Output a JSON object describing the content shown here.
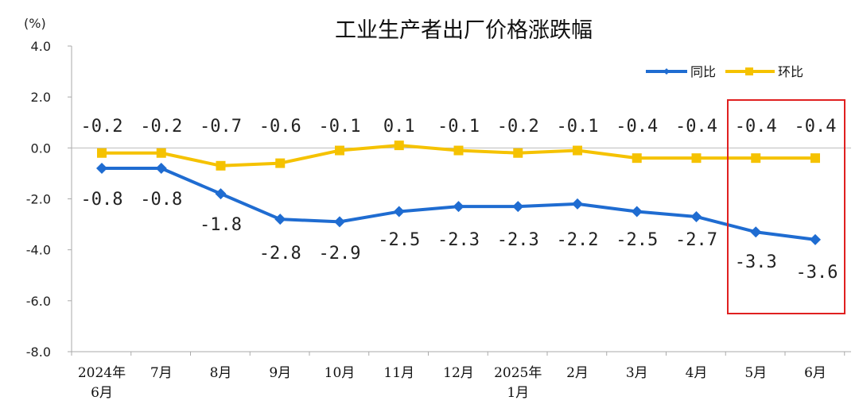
{
  "chart_data": {
    "type": "line",
    "title": "工业生产者出厂价格涨跌幅",
    "unit_label": "(%)",
    "ylim": [
      -8,
      4
    ],
    "yticks": [
      "4.0",
      "2.0",
      "0.0",
      "-2.0",
      "-4.0",
      "-6.0",
      "-8.0"
    ],
    "ytick_values": [
      4,
      2,
      0,
      -2,
      -4,
      -6,
      -8
    ],
    "grid": false,
    "legend_position": "top-right",
    "categories": [
      [
        "2024年",
        "6月"
      ],
      [
        "7月"
      ],
      [
        "8月"
      ],
      [
        "9月"
      ],
      [
        "10月"
      ],
      [
        "11月"
      ],
      [
        "12月"
      ],
      [
        "2025年",
        "1月"
      ],
      [
        "2月"
      ],
      [
        "3月"
      ],
      [
        "4月"
      ],
      [
        "5月"
      ],
      [
        "6月"
      ]
    ],
    "series": [
      {
        "name": "同比",
        "color": "#1F6CD1",
        "marker": "diamond",
        "values": [
          -0.8,
          -0.8,
          -1.8,
          -2.8,
          -2.9,
          -2.5,
          -2.3,
          -2.3,
          -2.2,
          -2.5,
          -2.7,
          -3.3,
          -3.6
        ],
        "labels": [
          "-0.8",
          "-0.8",
          "-1.8",
          "-2.8",
          "-2.9",
          "-2.5",
          "-2.3",
          "-2.3",
          "-2.2",
          "-2.5",
          "-2.7",
          "-3.3",
          "-3.6"
        ]
      },
      {
        "name": "环比",
        "color": "#F5C200",
        "marker": "square",
        "values": [
          -0.2,
          -0.2,
          -0.7,
          -0.6,
          -0.1,
          0.1,
          -0.1,
          -0.2,
          -0.1,
          -0.4,
          -0.4,
          -0.4,
          -0.4
        ],
        "labels": [
          "-0.2",
          "-0.2",
          "-0.7",
          "-0.6",
          "-0.1",
          "0.1",
          "-0.1",
          "-0.2",
          "-0.1",
          "-0.4",
          "-0.4",
          "-0.4",
          "-0.4"
        ]
      }
    ],
    "highlight": {
      "categories": [
        "5月",
        "6月"
      ],
      "color": "#E02020"
    }
  }
}
